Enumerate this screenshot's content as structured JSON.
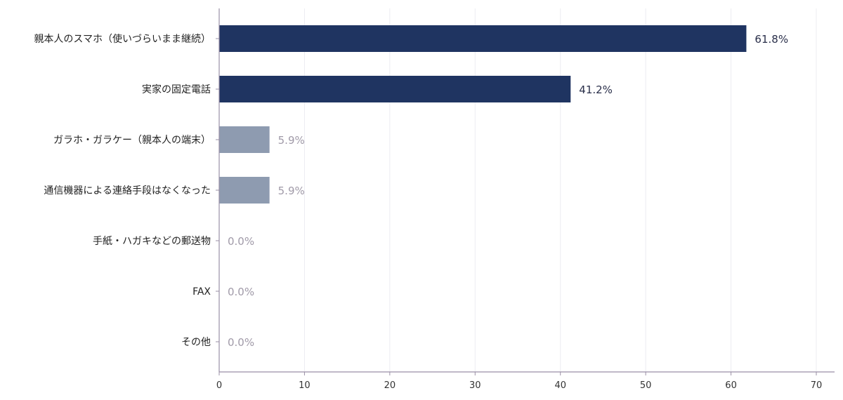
{
  "chart_data": {
    "type": "bar",
    "orientation": "horizontal",
    "categories": [
      "親本人のスマホ（使いづらいまま継続）",
      "実家の固定電話",
      "ガラホ・ガラケー（親本人の端末）",
      "通信機器による連絡手段はなくなった",
      "手紙・ハガキなどの郵送物",
      "FAX",
      "その他"
    ],
    "values": [
      61.8,
      41.2,
      5.9,
      5.9,
      0.0,
      0.0,
      0.0
    ],
    "value_labels": [
      "61.8%",
      "41.2%",
      "5.9%",
      "5.9%",
      "0.0%",
      "0.0%",
      "0.0%"
    ],
    "xlim": [
      0,
      70
    ],
    "xticks": [
      0,
      10,
      20,
      30,
      40,
      50,
      60,
      70
    ],
    "title": "",
    "xlabel": "",
    "ylabel": "",
    "grid": "vertical",
    "colors": {
      "high": "#1f3461",
      "low": "#8e9bb0",
      "high_label": "#2a2f4a",
      "low_label": "#a09aa8",
      "grid": "#ececf2",
      "axis": "#9a8fa6"
    }
  }
}
